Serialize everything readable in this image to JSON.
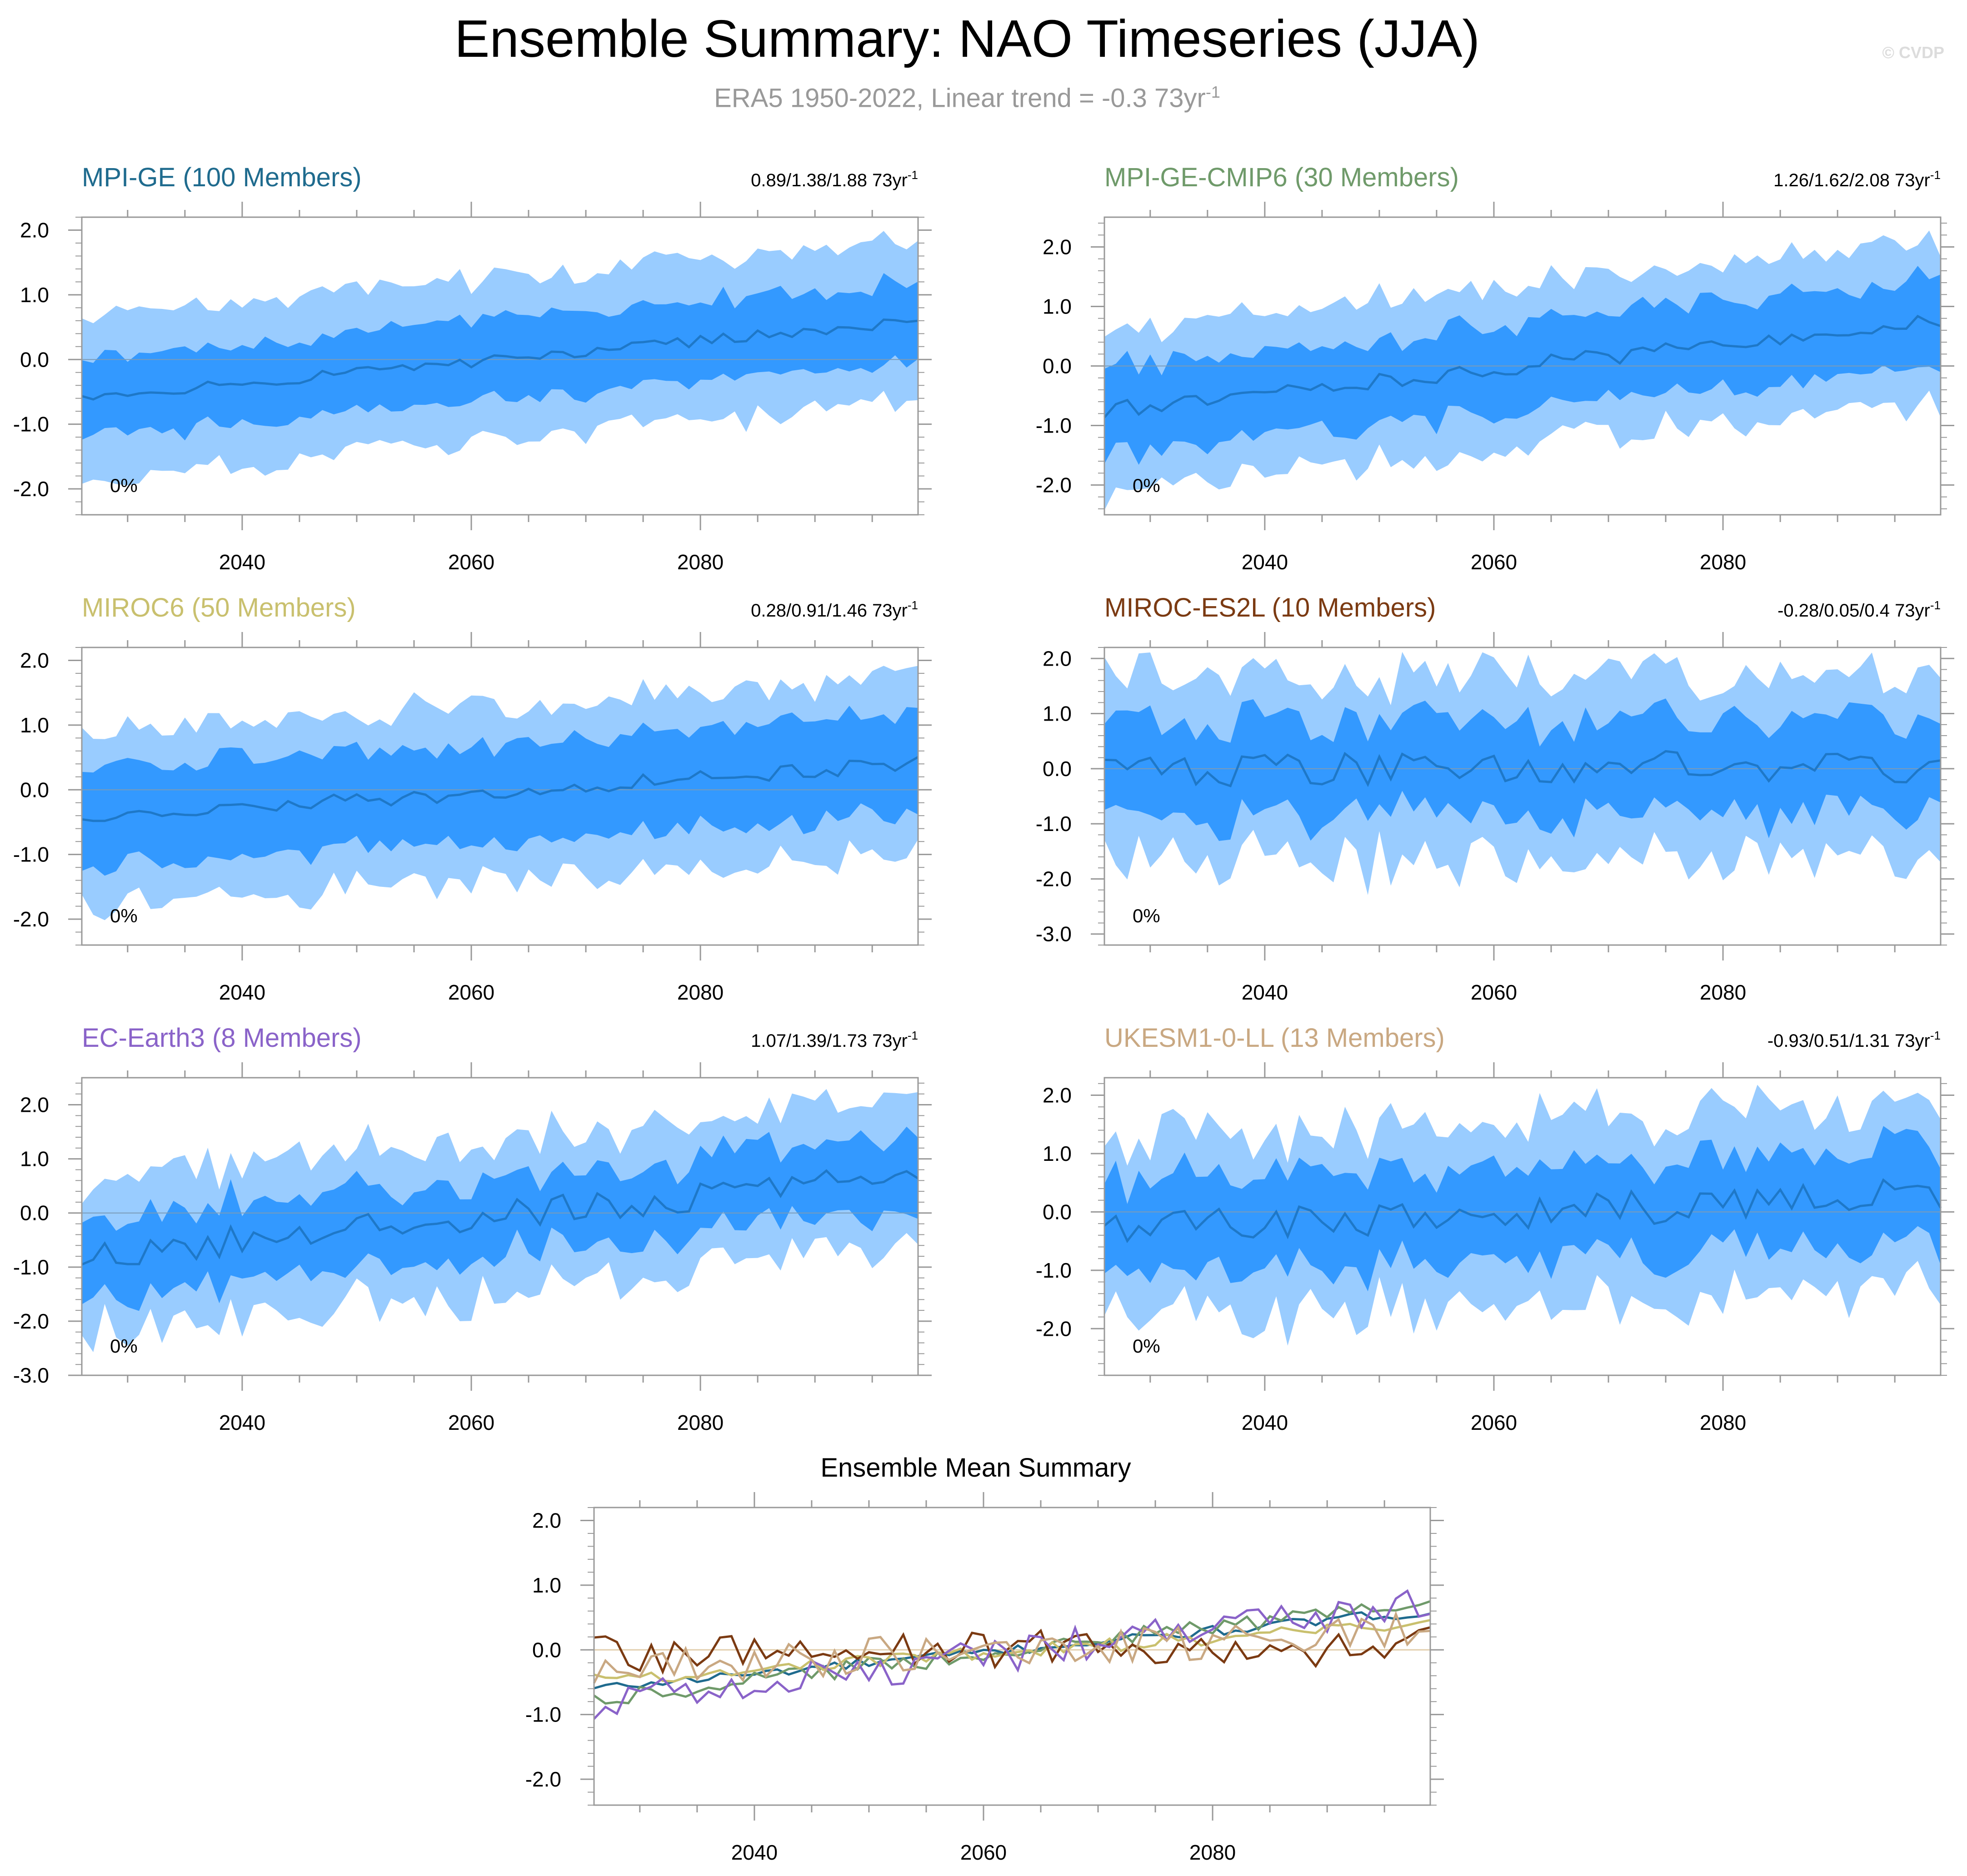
{
  "title": "Ensemble Summary: NAO Timeseries (JJA)",
  "subtitle": {
    "text": "ERA5 1950-2022, Linear trend = -0.3 73yr",
    "superscript": "-1"
  },
  "credit": "© CVDP",
  "chart_data": [
    {
      "type": "area",
      "panel": "MPI-GE",
      "title": "MPI-GE (100 Members)",
      "title_color": "#1f6b8e",
      "trend_label": "0.89/1.38/1.88 73yr",
      "trend_superscript": "-1",
      "percent_label": "0%",
      "x": [
        2026,
        2099
      ],
      "xticks": [
        "2040",
        "2060",
        "2080"
      ],
      "ylim": [
        -2.4,
        2.2
      ],
      "yticks": [
        "2.0",
        "1.0",
        "0.0",
        "-1.0",
        "-2.0"
      ],
      "ytick_values": [
        2,
        1,
        0,
        -1,
        -2
      ],
      "mean_trend": [
        -0.6,
        0.6
      ],
      "mean_noise": 0.08,
      "inner_halfwidth": 0.62,
      "outer_halfwidth": 1.25,
      "jitter": 0.22
    },
    {
      "type": "area",
      "panel": "MPI-GE-CMIP6",
      "title": "MPI-GE-CMIP6 (30 Members)",
      "title_color": "#6f9a6a",
      "trend_label": "1.26/1.62/2.08 73yr",
      "trend_superscript": "-1",
      "percent_label": "0%",
      "x": [
        2026,
        2099
      ],
      "xticks": [
        "2040",
        "2060",
        "2080"
      ],
      "ylim": [
        -2.5,
        2.5
      ],
      "yticks": [
        "2.0",
        "1.0",
        "0.0",
        "-1.0",
        "-2.0"
      ],
      "ytick_values": [
        2,
        1,
        0,
        -1,
        -2
      ],
      "mean_trend": [
        -0.75,
        0.75
      ],
      "mean_noise": 0.14,
      "inner_halfwidth": 0.72,
      "outer_halfwidth": 1.35,
      "jitter": 0.3
    },
    {
      "type": "area",
      "panel": "MIROC6",
      "title": "MIROC6 (50 Members)",
      "title_color": "#c9c06e",
      "trend_label": "0.28/0.91/1.46 73yr",
      "trend_superscript": "-1",
      "percent_label": "0%",
      "x": [
        2026,
        2099
      ],
      "xticks": [
        "2040",
        "2060",
        "2080"
      ],
      "ylim": [
        -2.4,
        2.2
      ],
      "yticks": [
        "2.0",
        "1.0",
        "0.0",
        "-1.0",
        "-2.0"
      ],
      "ytick_values": [
        2,
        1,
        0,
        -1,
        -2
      ],
      "mean_trend": [
        -0.45,
        0.4
      ],
      "mean_noise": 0.12,
      "inner_halfwidth": 0.75,
      "outer_halfwidth": 1.35,
      "jitter": 0.28
    },
    {
      "type": "area",
      "panel": "MIROC-ES2L",
      "title": "MIROC-ES2L (10 Members)",
      "title_color": "#7b3a12",
      "trend_label": "-0.28/0.05/0.4 73yr",
      "trend_superscript": "-1",
      "percent_label": "0%",
      "x": [
        2026,
        2099
      ],
      "xticks": [
        "2040",
        "2060",
        "2080"
      ],
      "ylim": [
        -3.2,
        2.2
      ],
      "yticks": [
        "2.0",
        "1.0",
        "0.0",
        "-1.0",
        "-2.0",
        "-3.0"
      ],
      "ytick_values": [
        2,
        1,
        0,
        -1,
        -2,
        -3
      ],
      "mean_trend": [
        -0.05,
        0.05
      ],
      "mean_noise": 0.3,
      "inner_halfwidth": 0.85,
      "outer_halfwidth": 1.65,
      "jitter": 0.45
    },
    {
      "type": "area",
      "panel": "EC-Earth3",
      "title": "EC-Earth3 (8 Members)",
      "title_color": "#8a63c9",
      "trend_label": "1.07/1.39/1.73 73yr",
      "trend_superscript": "-1",
      "percent_label": "0%",
      "x": [
        2026,
        2099
      ],
      "xticks": [
        "2040",
        "2060",
        "2080"
      ],
      "ylim": [
        -3.0,
        2.5
      ],
      "yticks": [
        "2.0",
        "1.0",
        "0.0",
        "-1.0",
        "-2.0",
        "-3.0"
      ],
      "ytick_values": [
        2,
        1,
        0,
        -1,
        -2,
        -3
      ],
      "mean_trend": [
        -0.8,
        0.7
      ],
      "mean_noise": 0.28,
      "inner_halfwidth": 0.7,
      "outer_halfwidth": 1.4,
      "jitter": 0.4
    },
    {
      "type": "area",
      "panel": "UKESM1-0-LL",
      "title": "UKESM1-0-LL (13 Members)",
      "title_color": "#c9a882",
      "trend_label": "-0.93/0.51/1.31 73yr",
      "trend_superscript": "-1",
      "percent_label": "0%",
      "x": [
        2026,
        2099
      ],
      "xticks": [
        "2040",
        "2060",
        "2080"
      ],
      "ylim": [
        -2.8,
        2.3
      ],
      "yticks": [
        "2.0",
        "1.0",
        "0.0",
        "-1.0",
        "-2.0"
      ],
      "ytick_values": [
        2,
        1,
        0,
        -1,
        -2
      ],
      "mean_trend": [
        -0.3,
        0.3
      ],
      "mean_noise": 0.3,
      "inner_halfwidth": 0.8,
      "outer_halfwidth": 1.55,
      "jitter": 0.42
    },
    {
      "type": "line",
      "panel": "Ensemble Mean",
      "title": "Ensemble Mean Summary",
      "x": [
        2026,
        2099
      ],
      "xticks": [
        "2040",
        "2060",
        "2080"
      ],
      "ylim": [
        -2.4,
        2.2
      ],
      "yticks": [
        "2.0",
        "1.0",
        "0.0",
        "-1.0",
        "-2.0"
      ],
      "ytick_values": [
        2,
        1,
        0,
        -1,
        -2
      ],
      "series": [
        {
          "name": "MPI-GE",
          "color": "#1f6b8e",
          "trend": [
            -0.6,
            0.6
          ],
          "noise": 0.08
        },
        {
          "name": "MPI-GE-CMIP6",
          "color": "#6f9a6a",
          "trend": [
            -0.75,
            0.75
          ],
          "noise": 0.14
        },
        {
          "name": "MIROC6",
          "color": "#c9c06e",
          "trend": [
            -0.45,
            0.4
          ],
          "noise": 0.12
        },
        {
          "name": "MIROC-ES2L",
          "color": "#7b3a12",
          "trend": [
            -0.05,
            0.05
          ],
          "noise": 0.3
        },
        {
          "name": "EC-Earth3",
          "color": "#8a63c9",
          "trend": [
            -0.8,
            0.7
          ],
          "noise": 0.28
        },
        {
          "name": "UKESM1-0-LL",
          "color": "#c9a882",
          "trend": [
            -0.3,
            0.3
          ],
          "noise": 0.3
        }
      ]
    }
  ],
  "colors": {
    "outer_band": "#99ccff",
    "inner_band": "#3399ff",
    "mean_line": "#1e78c8",
    "zero_line": "#7b9bb7",
    "axis": "#999999"
  }
}
